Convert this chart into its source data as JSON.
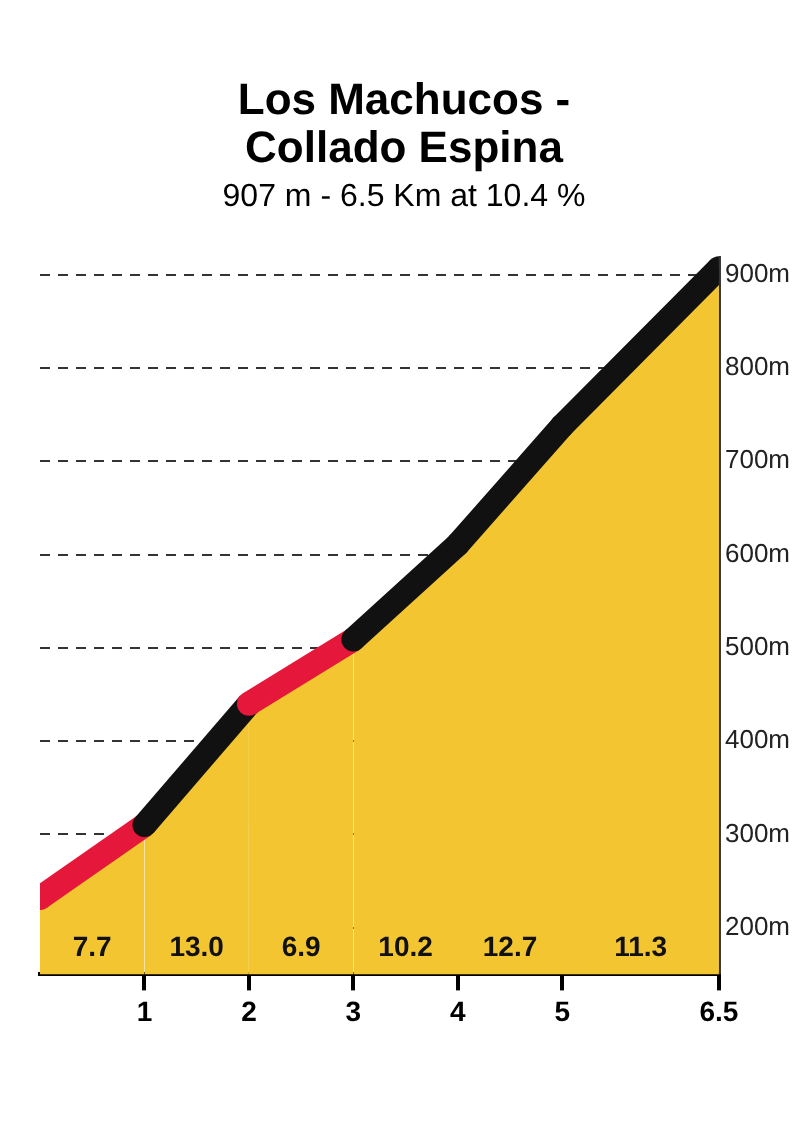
{
  "chart_data": {
    "type": "area",
    "title": "Los Machucos - Collado Espina",
    "subtitle": "907 m - 6.5 Km at 10.4 %",
    "x": [
      0,
      1,
      2,
      3,
      4,
      5,
      6.5
    ],
    "series": [
      {
        "color": "#f2c531",
        "values": [
          232,
          310,
          440,
          509,
          611,
          738,
          907
        ],
        "colors": [
          "#e5173a",
          "#111111",
          "#e5173a",
          "#111111",
          "#111111",
          "#111111",
          "#111111"
        ]
      }
    ],
    "xlim": [
      0,
      6.5
    ],
    "xticks": [
      1,
      2,
      3,
      4,
      5,
      6.5
    ],
    "ylim": [
      150,
      920
    ],
    "yticks": [
      {
        "value": 200,
        "label": "200m"
      },
      {
        "value": 300,
        "label": "300m"
      },
      {
        "value": 400,
        "label": "400m"
      },
      {
        "value": 500,
        "label": "500m"
      },
      {
        "value": 600,
        "label": "600m"
      },
      {
        "value": 700,
        "label": "700m"
      },
      {
        "value": 800,
        "label": "800m"
      },
      {
        "value": 900,
        "label": "900m"
      }
    ],
    "grid": true,
    "line_style": "dashed",
    "annotations": [
      "7.7",
      "13.0",
      "6.9",
      "10.2",
      "12.7",
      "11.3"
    ]
  }
}
